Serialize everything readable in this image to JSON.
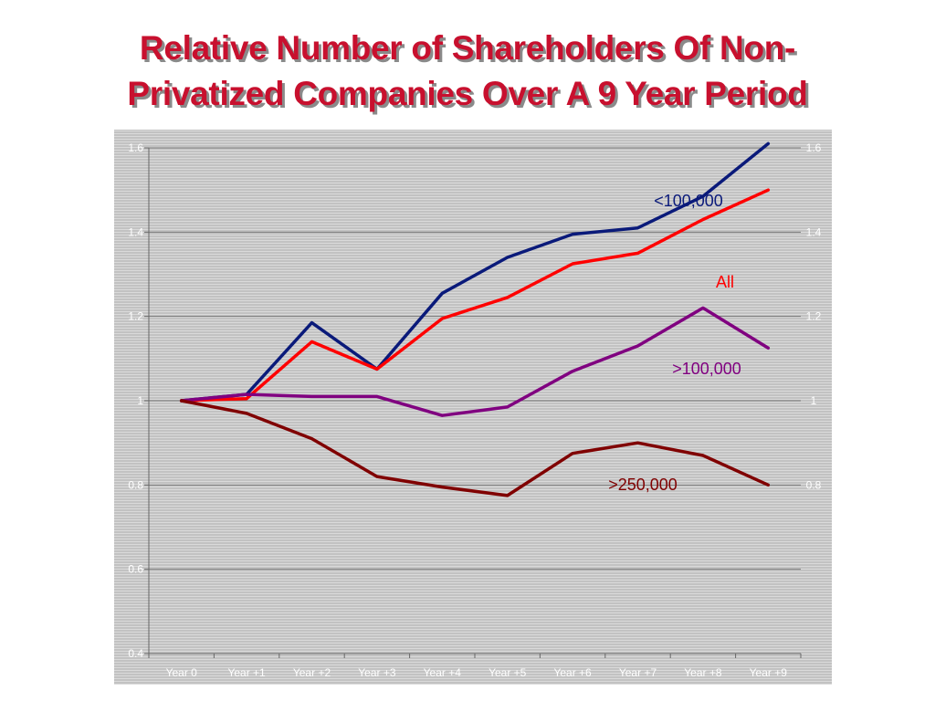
{
  "title_lines": [
    "Relative Number of Shareholders Of Non-",
    "Privatized Companies Over A 9 Year Period"
  ],
  "chart_data": {
    "type": "line",
    "categories": [
      "Year 0",
      "Year +1",
      "Year +2",
      "Year +3",
      "Year +4",
      "Year +5",
      "Year +6",
      "Year +7",
      "Year +8",
      "Year +9"
    ],
    "ylim": [
      0.4,
      1.6
    ],
    "y_ticks_left": [
      "0.4",
      "0.6",
      "0.8",
      "1",
      "1.2",
      "1.4",
      "1.6"
    ],
    "y_ticks_right": [
      "0.8",
      "1",
      "1.2",
      "1.4",
      "1.6"
    ],
    "grid": true,
    "series": [
      {
        "name": "<100,000",
        "color": "#0a1a7a",
        "values": [
          1.0,
          1.015,
          1.185,
          1.075,
          1.255,
          1.34,
          1.395,
          1.41,
          1.485,
          1.61
        ]
      },
      {
        "name": "All",
        "color": "#ff0000",
        "values": [
          1.0,
          1.005,
          1.14,
          1.075,
          1.195,
          1.245,
          1.325,
          1.35,
          1.43,
          1.5
        ]
      },
      {
        "name": ">100,000",
        "color": "#800080",
        "values": [
          1.0,
          1.015,
          1.01,
          1.01,
          0.965,
          0.985,
          1.07,
          1.13,
          1.22,
          1.125
        ]
      },
      {
        "name": ">250,000",
        "color": "#800000",
        "values": [
          1.0,
          0.97,
          0.91,
          0.82,
          0.795,
          0.775,
          0.875,
          0.9,
          0.87,
          0.8
        ]
      }
    ]
  }
}
